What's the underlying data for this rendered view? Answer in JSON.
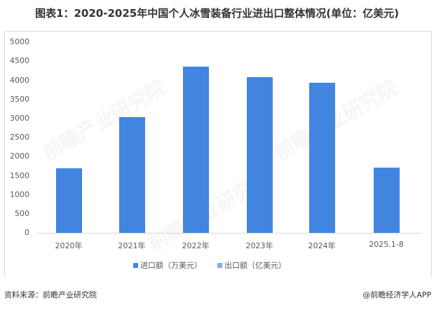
{
  "title": "图表1：2020-2025年中国个人冰雪装备行业进出口整体情况(单位：亿美元)",
  "footer": {
    "source": "资料来源：前瞻产业研究院",
    "credit": "@前瞻经济学人APP"
  },
  "watermark": "前瞻产业研究院",
  "colors": {
    "import": "#4185e0",
    "export": "#7eaee8"
  },
  "y_ticks": [
    "5000",
    "4500",
    "4000",
    "3500",
    "3000",
    "2500",
    "2000",
    "1500",
    "1000",
    "500",
    "0"
  ],
  "legend": [
    {
      "label": "进口额（万美元）",
      "color": "#4185e0"
    },
    {
      "label": "出口额（亿美元）",
      "color": "#7eaee8"
    }
  ],
  "chart_data": {
    "type": "bar",
    "title": "图表1：2020-2025年中国个人冰雪装备行业进出口整体情况(单位：亿美元)",
    "categories": [
      "2020年",
      "2021年",
      "2022年",
      "2023年",
      "2024年",
      "2025.1-8"
    ],
    "series": [
      {
        "name": "进口额（万美元）",
        "values": [
          1690,
          3030,
          4360,
          4080,
          3930,
          1710
        ]
      },
      {
        "name": "出口额（亿美元）",
        "values": [
          null,
          null,
          null,
          null,
          null,
          null
        ]
      }
    ],
    "xlabel": "",
    "ylabel": "",
    "ylim": [
      0,
      5000
    ],
    "yticks": [
      0,
      500,
      1000,
      1500,
      2000,
      2500,
      3000,
      3500,
      4000,
      4500,
      5000
    ],
    "grid": false,
    "legend_position": "bottom"
  }
}
